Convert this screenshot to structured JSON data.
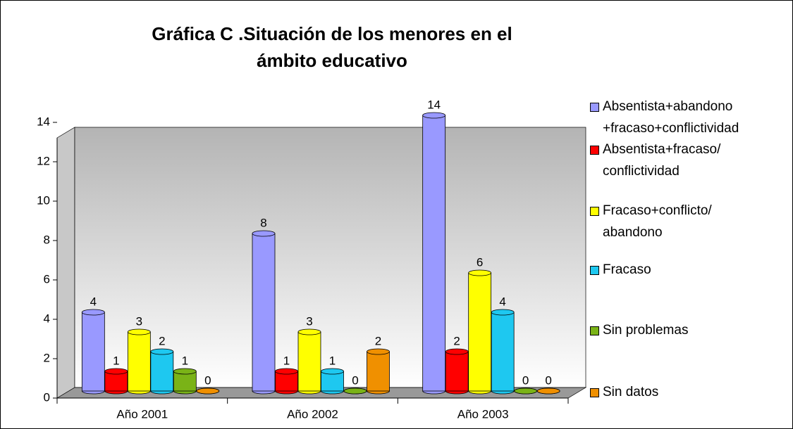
{
  "chart_data": {
    "type": "bar",
    "title": "Gráfica C .Situación de los menores en el ámbito educativo",
    "categories": [
      "Año 2001",
      "Año 2002",
      "Año 2003"
    ],
    "series": [
      {
        "name": "Absentista+abandono +fracaso+conflictividad",
        "color": "#9999ff",
        "values": [
          4,
          8,
          14
        ]
      },
      {
        "name": "Absentista+fracaso/ conflictividad",
        "color": "#ff0000",
        "values": [
          1,
          1,
          2
        ]
      },
      {
        "name": "Fracaso+conflicto/ abandono",
        "color": "#ffff00",
        "values": [
          3,
          3,
          6
        ]
      },
      {
        "name": "Fracaso",
        "color": "#1ec8f0",
        "values": [
          2,
          1,
          4
        ]
      },
      {
        "name": "Sin problemas",
        "color": "#7ab317",
        "values": [
          1,
          0,
          0
        ]
      },
      {
        "name": "Sin datos",
        "color": "#f09000",
        "values": [
          0,
          2,
          0
        ]
      }
    ],
    "ylim": [
      0,
      14
    ],
    "yticks": [
      0,
      2,
      4,
      6,
      8,
      10,
      12,
      14
    ]
  }
}
